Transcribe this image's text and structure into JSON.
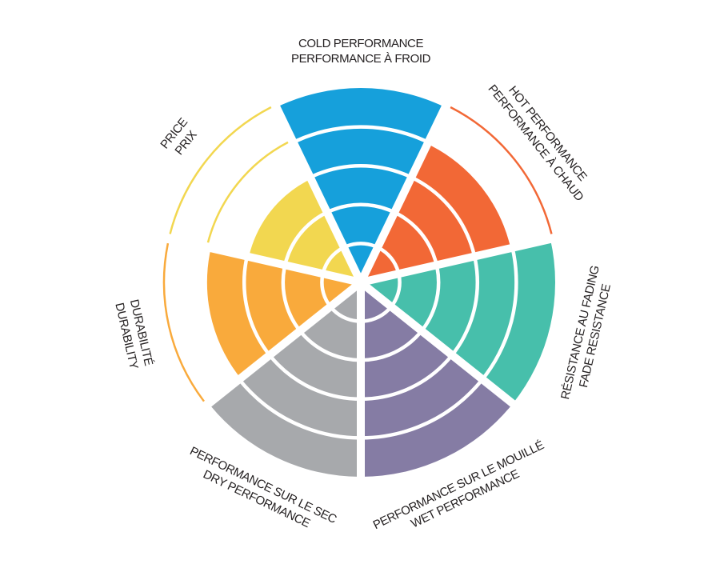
{
  "chart_data": {
    "type": "polar-area",
    "scale_max": 5,
    "grid": false,
    "legend": "none",
    "categories": [
      {
        "label_lines": [
          "COLD PERFORMANCE",
          "PERFORMANCE À FROID"
        ],
        "value": 5,
        "color": "#16a0db"
      },
      {
        "label_lines": [
          "HOT PERFORMANCE",
          "PERFORMANCE À CHAUD"
        ],
        "value": 4,
        "color": "#f26836"
      },
      {
        "label_lines": [
          "RÉSISTANCE AU FADING",
          "FADE RESISTANCE"
        ],
        "value": 5,
        "color": "#47bfab"
      },
      {
        "label_lines": [
          "PERFORMANCE SUR LE MOUILLÉ",
          "WET PERFORMANCE"
        ],
        "value": 5,
        "color": "#857ca4"
      },
      {
        "label_lines": [
          "PERFORMANCE SUR LE SEC",
          "DRY PERFORMANCE"
        ],
        "value": 5,
        "color": "#a7a9ac"
      },
      {
        "label_lines": [
          "DURABILITÉ",
          "DURABILITY"
        ],
        "value": 4,
        "color": "#f9aa3c"
      },
      {
        "label_lines": [
          "PRICE",
          "PRIX"
        ],
        "value": 3,
        "color": "#f2d750"
      }
    ]
  }
}
